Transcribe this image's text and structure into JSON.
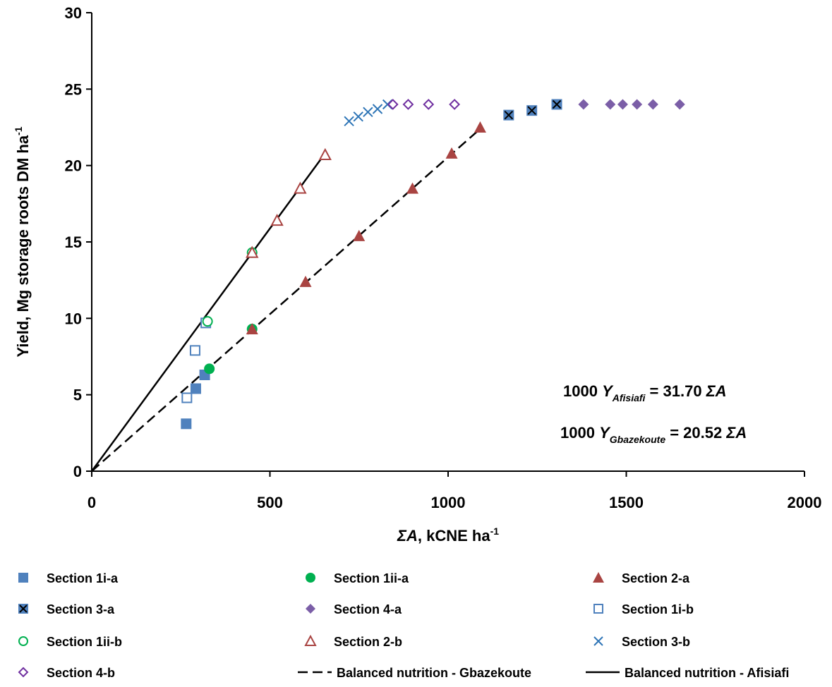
{
  "chart_data": {
    "type": "scatter",
    "title": "",
    "ylabel": {
      "main": "Yield, Mg storage roots DM ha",
      "sup": "-1"
    },
    "xlabel": {
      "sigma": "ΣA",
      "rest": ", kCNE ha",
      "sup": "-1"
    },
    "xlim": [
      0,
      2000
    ],
    "ylim": [
      0,
      30
    ],
    "x_ticks": [
      0,
      500,
      1000,
      1500,
      2000
    ],
    "y_ticks": [
      0,
      5,
      10,
      15,
      20,
      25,
      30
    ],
    "grid": false,
    "legend_position": "bottom",
    "annotations": [
      {
        "prefix": "1000 ",
        "var": "Y",
        "sub": "Afisiafi",
        "eq": " = 31.70 ",
        "sigma": "ΣA"
      },
      {
        "prefix": "1000 ",
        "var": "Y",
        "sub": "Gbazekoute",
        "eq": " = 20.52 ",
        "sigma": "ΣA"
      }
    ],
    "series": [
      {
        "name": "Section 1i-a",
        "marker": "square-filled",
        "color": "#4F81BD",
        "points": [
          [
            265,
            3.1
          ],
          [
            292,
            5.4
          ],
          [
            317,
            6.3
          ]
        ]
      },
      {
        "name": "Section 1ii-a",
        "marker": "circle-filled",
        "color": "#00B050",
        "points": [
          [
            330,
            6.7
          ],
          [
            450,
            9.3
          ]
        ]
      },
      {
        "name": "Section 2-a",
        "marker": "triangle-filled",
        "color": "#A94442",
        "points": [
          [
            450,
            9.3
          ],
          [
            600,
            12.4
          ],
          [
            750,
            15.4
          ],
          [
            900,
            18.5
          ],
          [
            1010,
            20.8
          ],
          [
            1090,
            22.5
          ]
        ]
      },
      {
        "name": "Section 3-a",
        "marker": "square-x",
        "color": "#4F81BD",
        "points": [
          [
            1170,
            23.3
          ],
          [
            1235,
            23.6
          ],
          [
            1305,
            24.0
          ]
        ]
      },
      {
        "name": "Section 4-a",
        "marker": "diamond-filled",
        "color": "#7B5EA7",
        "points": [
          [
            1380,
            24.0
          ],
          [
            1455,
            24.0
          ],
          [
            1490,
            24.0
          ],
          [
            1530,
            24.0
          ],
          [
            1575,
            24.0
          ],
          [
            1650,
            24.0
          ]
        ]
      },
      {
        "name": "Section 1i-b",
        "marker": "square-open",
        "color": "#4F81BD",
        "points": [
          [
            267,
            4.8
          ],
          [
            290,
            7.9
          ],
          [
            320,
            9.7
          ]
        ]
      },
      {
        "name": "Section 1ii-b",
        "marker": "circle-open",
        "color": "#00B050",
        "points": [
          [
            325,
            9.8
          ],
          [
            450,
            14.3
          ]
        ]
      },
      {
        "name": "Section 2-b",
        "marker": "triangle-open",
        "color": "#A94442",
        "points": [
          [
            450,
            14.3
          ],
          [
            520,
            16.4
          ],
          [
            585,
            18.5
          ],
          [
            655,
            20.7
          ]
        ]
      },
      {
        "name": "Section 3-b",
        "marker": "x",
        "color": "#2E75B6",
        "points": [
          [
            722,
            22.9
          ],
          [
            748,
            23.2
          ],
          [
            775,
            23.5
          ],
          [
            802,
            23.7
          ],
          [
            830,
            24.0
          ]
        ]
      },
      {
        "name": "Section 4-b",
        "marker": "diamond-open",
        "color": "#7030A0",
        "points": [
          [
            845,
            24.0
          ],
          [
            888,
            24.0
          ],
          [
            945,
            24.0
          ],
          [
            1018,
            24.0
          ]
        ]
      }
    ],
    "lines": [
      {
        "name": "Balanced nutrition - Gbazekoute",
        "style": "dashed",
        "color": "#000000",
        "points": [
          [
            0,
            0
          ],
          [
            1090,
            22.4
          ]
        ]
      },
      {
        "name": "Balanced nutrition - Afisiafi",
        "style": "solid",
        "color": "#000000",
        "points": [
          [
            0,
            0
          ],
          [
            655,
            20.8
          ]
        ]
      }
    ]
  }
}
